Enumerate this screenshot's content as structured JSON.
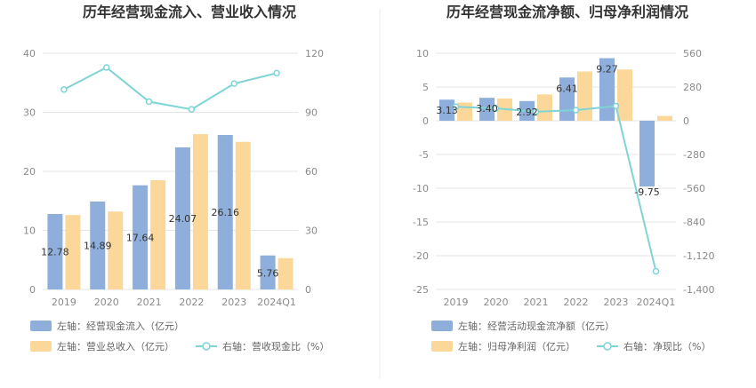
{
  "colors": {
    "bar_primary": "#8eaedc",
    "bar_secondary": "#fbd89a",
    "line": "#7fd4d6",
    "grid": "#e6e6e6",
    "divider": "#eeeeee"
  },
  "chart_data": [
    {
      "type": "bar",
      "title": "历年经营现金流入、营业收入情况",
      "categories": [
        "2019",
        "2020",
        "2021",
        "2022",
        "2023",
        "2024Q1"
      ],
      "left_axis": {
        "ticks": [
          "0",
          "10",
          "20",
          "30",
          "40"
        ],
        "range": [
          0,
          40
        ]
      },
      "right_axis": {
        "ticks": [
          "0",
          "30",
          "60",
          "90",
          "120"
        ],
        "range": [
          0,
          120
        ]
      },
      "series": [
        {
          "name": "左轴：经营现金流入（亿元）",
          "type": "bar",
          "axis": "left",
          "values": [
            12.78,
            14.89,
            17.64,
            24.07,
            26.16,
            5.76
          ],
          "labels": [
            "12.78",
            "14.89",
            "17.64",
            "24.07",
            "26.16",
            "5.76"
          ]
        },
        {
          "name": "左轴：营业总收入（亿元）",
          "type": "bar",
          "axis": "left",
          "values": [
            12.6,
            13.2,
            18.5,
            26.3,
            25.0,
            5.3
          ]
        },
        {
          "name": "右轴：营收现金比（%）",
          "type": "line",
          "axis": "right",
          "values": [
            101.6,
            112.8,
            95.4,
            91.5,
            104.6,
            109.9
          ]
        }
      ]
    },
    {
      "type": "bar",
      "title": "历年经营现金流净额、归母净利润情况",
      "categories": [
        "2019",
        "2020",
        "2021",
        "2022",
        "2023",
        "2024Q1"
      ],
      "left_axis": {
        "ticks": [
          "10",
          "5",
          "0",
          "-5",
          "-10",
          "-15",
          "-20",
          "-25"
        ],
        "range": [
          -25,
          10
        ]
      },
      "right_axis": {
        "ticks": [
          "560",
          "280",
          "0",
          "-280",
          "-560",
          "-840",
          "-1,120",
          "-1,400"
        ],
        "range": [
          -1400,
          560
        ]
      },
      "series": [
        {
          "name": "左轴：经营活动现金流净额（亿元）",
          "type": "bar",
          "axis": "left",
          "values": [
            3.13,
            3.4,
            2.92,
            6.41,
            9.27,
            -9.75
          ],
          "labels": [
            "3.13",
            "3.40",
            "2.92",
            "6.41",
            "9.27",
            "-9.75"
          ]
        },
        {
          "name": "左轴：归母净利润（亿元）",
          "type": "bar",
          "axis": "left",
          "values": [
            2.7,
            3.3,
            3.9,
            7.3,
            7.6,
            0.7
          ]
        },
        {
          "name": "右轴：净现比（%）",
          "type": "line",
          "axis": "right",
          "values": [
            116,
            103,
            75,
            88,
            122,
            -1250
          ]
        }
      ]
    }
  ]
}
